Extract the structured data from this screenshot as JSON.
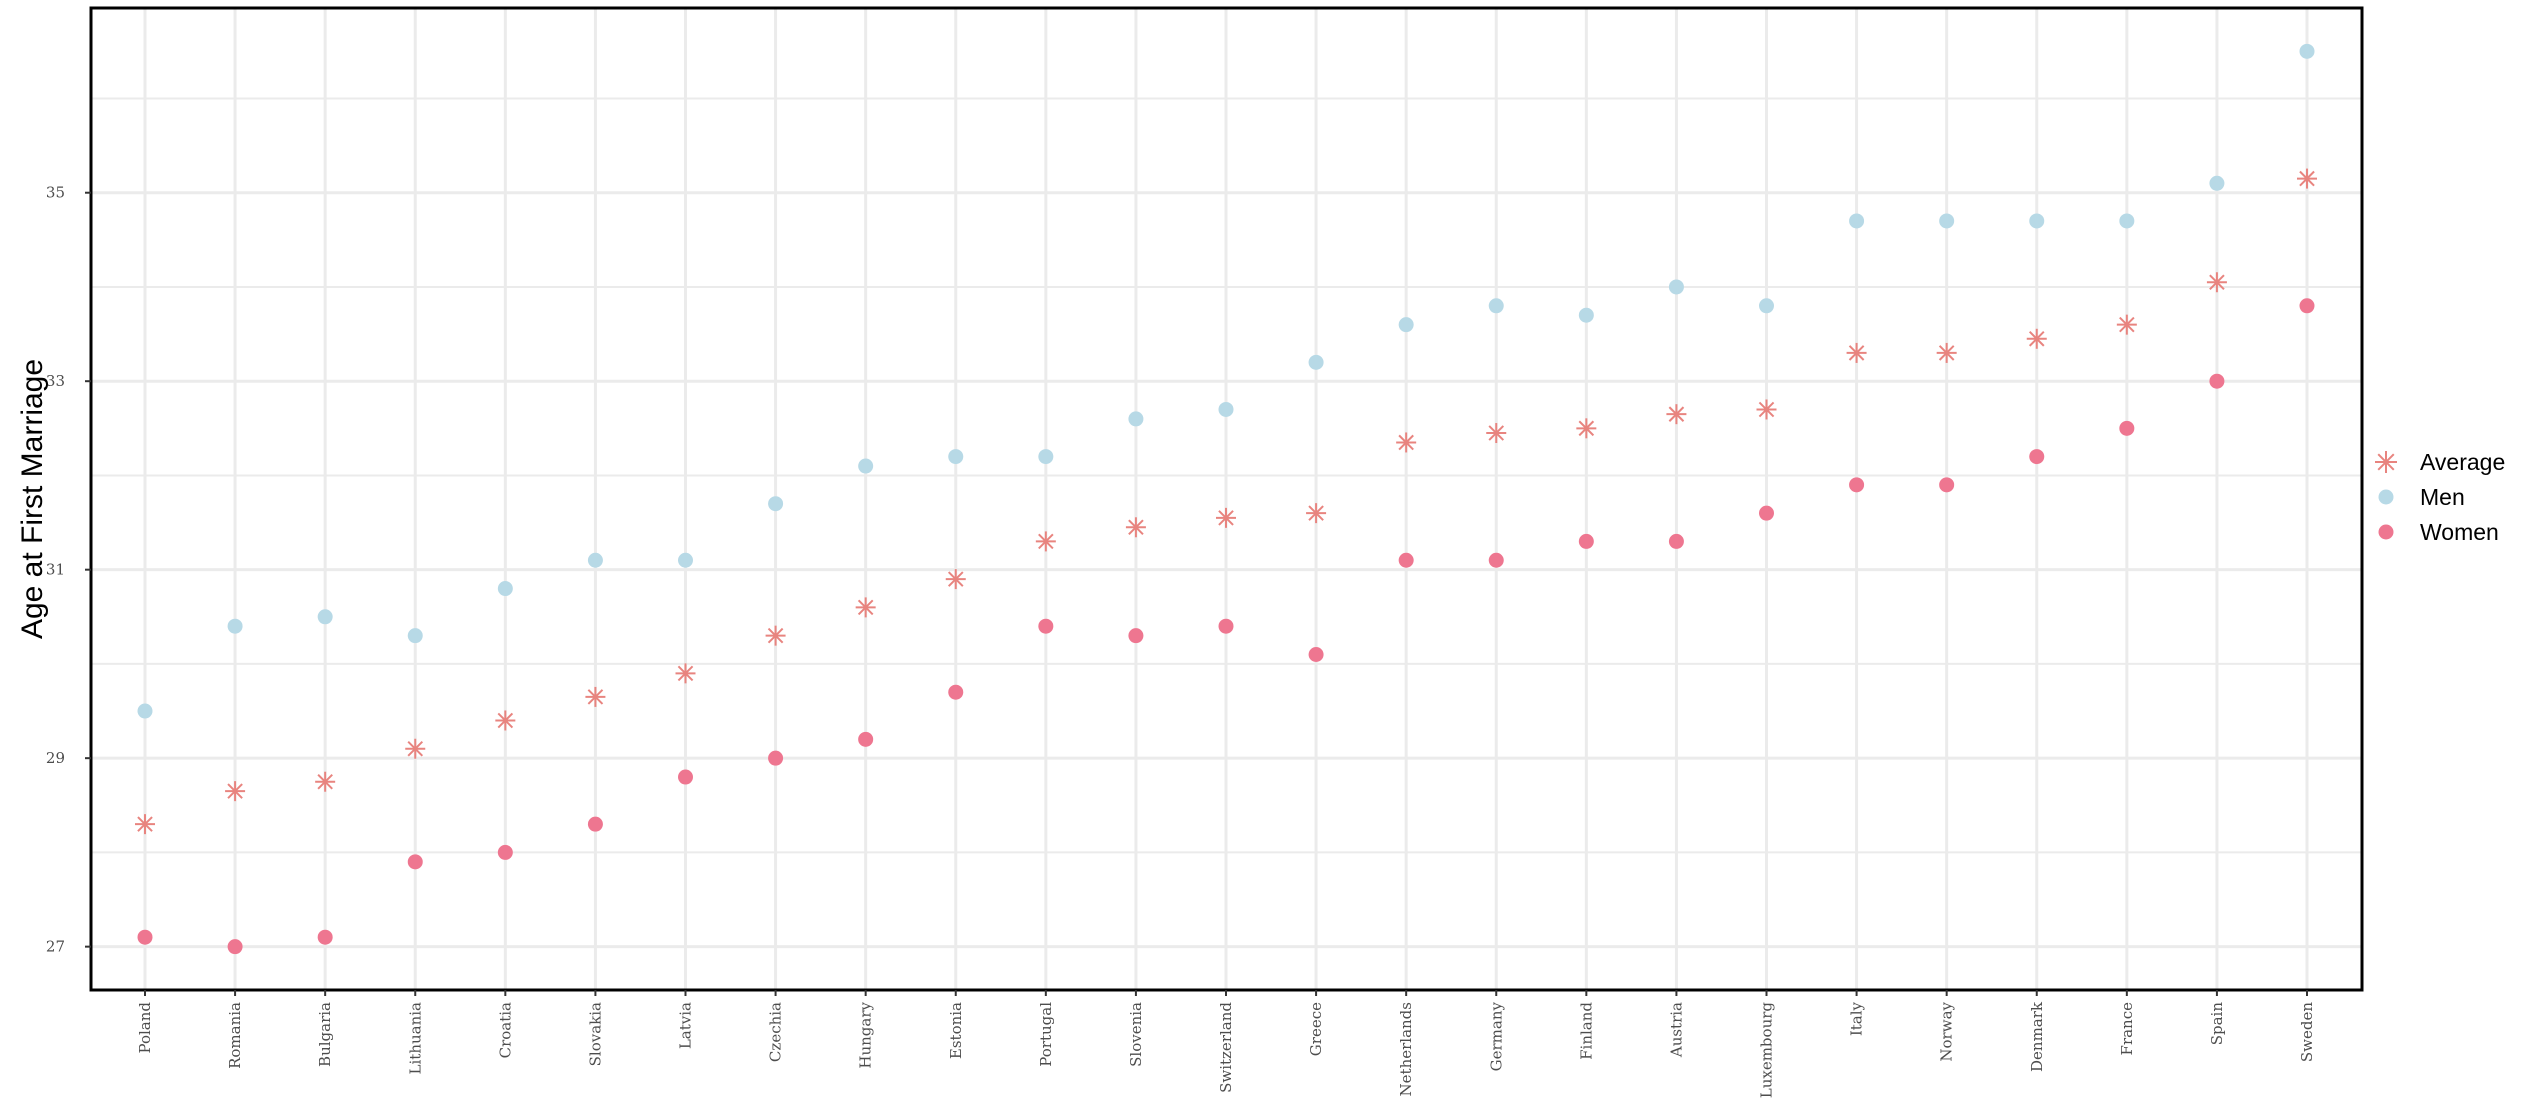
{
  "chart_data": {
    "type": "scatter",
    "title": "",
    "xlabel": "",
    "ylabel": "Age at First Marriage",
    "ylim": [
      26.54,
      36.96
    ],
    "yticks": [
      27,
      29,
      31,
      33,
      35
    ],
    "grid": true,
    "legend_position": "right",
    "categories": [
      "Poland",
      "Romania",
      "Bulgaria",
      "Lithuania",
      "Croatia",
      "Slovakia",
      "Latvia",
      "Czechia",
      "Hungary",
      "Estonia",
      "Portugal",
      "Slovenia",
      "Switzerland",
      "Greece",
      "Netherlands",
      "Germany",
      "Finland",
      "Austria",
      "Luxembourg",
      "Italy",
      "Norway",
      "Denmark",
      "France",
      "Spain",
      "Sweden"
    ],
    "series": [
      {
        "name": "Average",
        "marker": "asterisk",
        "color": "#E8847F",
        "values": [
          28.3,
          28.65,
          28.75,
          29.1,
          29.4,
          29.65,
          29.9,
          30.3,
          30.6,
          30.9,
          31.3,
          31.45,
          31.55,
          31.6,
          32.35,
          32.45,
          32.5,
          32.65,
          32.7,
          33.3,
          33.3,
          33.45,
          33.6,
          34.05,
          35.15
        ]
      },
      {
        "name": "Men",
        "marker": "circle",
        "color": "#B7D9E6",
        "values": [
          29.5,
          30.4,
          30.5,
          30.3,
          30.8,
          31.1,
          31.1,
          31.7,
          32.1,
          32.2,
          32.2,
          32.6,
          32.7,
          33.2,
          33.6,
          33.8,
          33.7,
          34.0,
          33.8,
          34.7,
          34.7,
          34.7,
          34.7,
          35.1,
          36.5
        ]
      },
      {
        "name": "Women",
        "marker": "circle",
        "color": "#EE7690",
        "values": [
          27.1,
          27.0,
          27.1,
          27.9,
          28.0,
          28.3,
          28.8,
          29.0,
          29.2,
          29.7,
          30.4,
          30.3,
          30.4,
          30.1,
          31.1,
          31.1,
          31.3,
          31.3,
          31.6,
          31.9,
          31.9,
          32.2,
          32.5,
          33.0,
          33.8
        ]
      }
    ]
  },
  "legend": {
    "items": [
      {
        "label": "Average",
        "marker": "asterisk",
        "color": "#E8847F"
      },
      {
        "label": "Men",
        "marker": "circle",
        "color": "#B7D9E6"
      },
      {
        "label": "Women",
        "marker": "circle",
        "color": "#EE7690"
      }
    ]
  },
  "axis": {
    "ylabel": "Age at First Marriage"
  }
}
